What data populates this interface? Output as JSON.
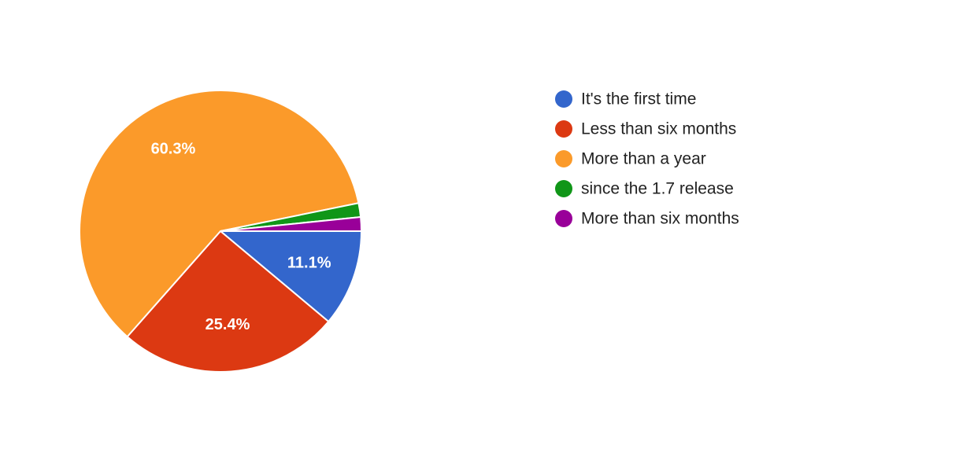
{
  "chart_data": {
    "type": "pie",
    "categories": [
      "It's the first time",
      "Less than six months",
      "More than a year",
      "since the 1.7 release",
      "More than six months"
    ],
    "values": [
      11.1,
      25.4,
      60.3,
      1.6,
      1.6
    ],
    "value_labels": [
      "11.1%",
      "25.4%",
      "60.3%",
      null,
      null
    ],
    "colors": [
      "#3366cc",
      "#dc3912",
      "#fb9a2a",
      "#109618",
      "#990099"
    ],
    "legend": "right"
  }
}
